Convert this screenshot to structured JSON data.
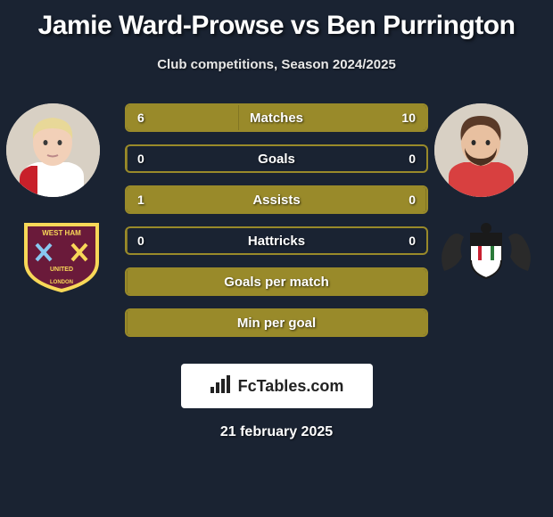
{
  "title": "Jamie Ward-Prowse vs Ben Purrington",
  "subtitle": "Club competitions, Season 2024/2025",
  "brand_text": "FcTables.com",
  "date_text": "21 february 2025",
  "colors": {
    "background": "#1a2332",
    "bar_border": "#998a2a",
    "bar_fill": "#998a2a",
    "text": "#ffffff",
    "brand_bg": "#ffffff",
    "brand_text": "#222222"
  },
  "fonts": {
    "title_size": 30,
    "subtitle_size": 15,
    "stat_label_size": 15,
    "stat_value_size": 14,
    "date_size": 16
  },
  "stats": [
    {
      "label": "Matches",
      "left_val": "6",
      "right_val": "10",
      "left_pct": 37.5,
      "right_pct": 62.5
    },
    {
      "label": "Goals",
      "left_val": "0",
      "right_val": "0",
      "left_pct": 0,
      "right_pct": 0
    },
    {
      "label": "Assists",
      "left_val": "1",
      "right_val": "0",
      "left_pct": 100,
      "right_pct": 0
    },
    {
      "label": "Hattricks",
      "left_val": "0",
      "right_val": "0",
      "left_pct": 0,
      "right_pct": 0
    },
    {
      "label": "Goals per match",
      "left_val": "",
      "right_val": "",
      "left_pct": 0,
      "right_pct": 100
    },
    {
      "label": "Min per goal",
      "left_val": "",
      "right_val": "",
      "left_pct": 0,
      "right_pct": 100
    }
  ],
  "player_left": {
    "skin": "#f2d0b8",
    "hair": "#e8d898",
    "jersey": "#ffffff",
    "jersey_accent": "#c8202a"
  },
  "player_right": {
    "skin": "#e8c0a0",
    "hair": "#5a3a28",
    "beard": "#4a3020",
    "jersey": "#d84040"
  },
  "badge_left": {
    "shield_outer": "#f8d858",
    "shield_inner": "#6a1a3a",
    "cross_h": "#88c8f0",
    "cross_v": "#f8d858",
    "text_top": "WEST HAM",
    "text_mid": "UNITED",
    "text_bot": "LONDON"
  },
  "badge_right": {
    "crest_bg": "#ffffff",
    "crest_stripe": "#c82030",
    "crest_black": "#1a1a1a",
    "lion": "#2a2a2a"
  }
}
